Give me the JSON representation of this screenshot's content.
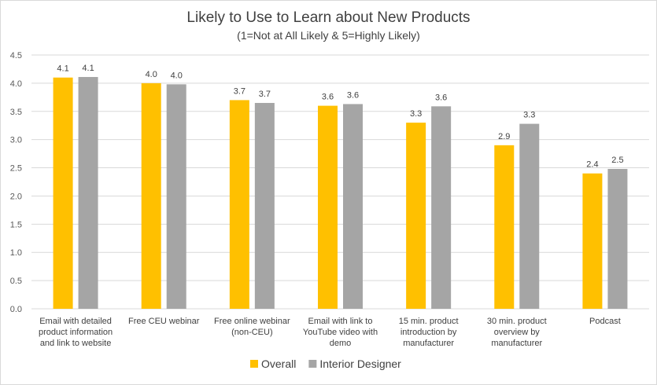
{
  "chart_data": {
    "type": "bar",
    "title": "Likely to Use to Learn about New Products",
    "subtitle": "(1=Not at All Likely & 5=Highly Likely)",
    "categories": [
      [
        "Email with detailed",
        "product information",
        "and link to website"
      ],
      [
        "Free CEU webinar"
      ],
      [
        "Free online webinar",
        "(non-CEU)"
      ],
      [
        "Email with link to",
        "YouTube video with",
        "demo"
      ],
      [
        "15 min. product",
        "introduction by",
        "manufacturer"
      ],
      [
        "30 min. product",
        "overview by",
        "manufacturer"
      ],
      [
        "Podcast"
      ]
    ],
    "series": [
      {
        "name": "Overall",
        "color": "#FFC000",
        "values": [
          4.1,
          4.0,
          3.7,
          3.6,
          3.3,
          2.9,
          2.4
        ]
      },
      {
        "name": "Interior Designer",
        "color": "#A5A5A5",
        "values": [
          4.11,
          3.98,
          3.65,
          3.63,
          3.59,
          3.28,
          2.48
        ]
      }
    ],
    "data_labels": [
      [
        "4.1",
        "4.0",
        "3.7",
        "3.6",
        "3.3",
        "2.9",
        "2.4"
      ],
      [
        "4.1",
        "4.0",
        "3.7",
        "3.6",
        "3.6",
        "3.3",
        "2.5"
      ]
    ],
    "y_ticks": [
      "0.0",
      "0.5",
      "1.0",
      "1.5",
      "2.0",
      "2.5",
      "3.0",
      "3.5",
      "4.0",
      "4.5"
    ],
    "ylim": [
      0,
      4.5
    ],
    "grid": true,
    "legend_position": "bottom"
  }
}
